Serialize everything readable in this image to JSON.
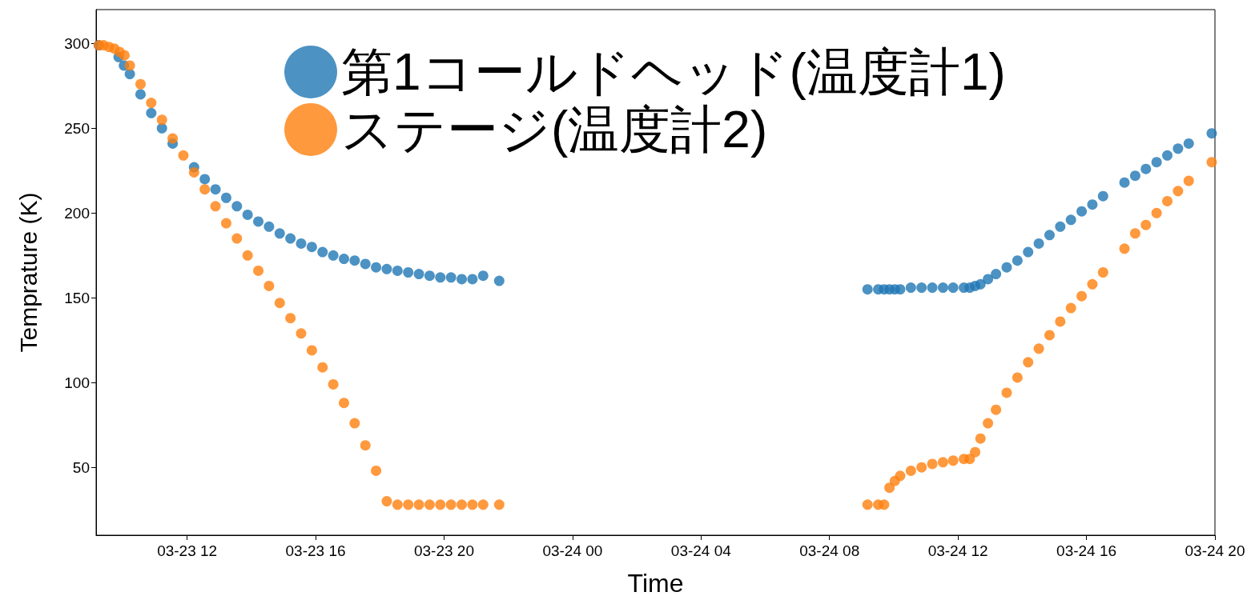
{
  "chart_data": {
    "type": "scatter",
    "xlabel": "Time",
    "ylabel": "Temprature (K)",
    "marker": "circle",
    "grid": false,
    "legend": "top",
    "xlim": [
      "--03-23T09:10",
      "--03-24T20:00"
    ],
    "xticks": [
      {
        "value": "--03-23T12:00",
        "label": "03-23 12"
      },
      {
        "value": "--03-23T16:00",
        "label": "03-23 16"
      },
      {
        "value": "--03-23T20:00",
        "label": "03-23 20"
      },
      {
        "value": "--03-24T00:00",
        "label": "03-24 00"
      },
      {
        "value": "--03-24T04:00",
        "label": "03-24 04"
      },
      {
        "value": "--03-24T08:00",
        "label": "03-24 08"
      },
      {
        "value": "--03-24T12:00",
        "label": "03-24 12"
      },
      {
        "value": "--03-24T16:00",
        "label": "03-24 16"
      },
      {
        "value": "--03-24T20:00",
        "label": "03-24 20"
      }
    ],
    "ylim": [
      10,
      320
    ],
    "yticks": [
      50,
      100,
      150,
      200,
      250,
      300
    ],
    "series": [
      {
        "name": "第1コールドヘッド(温度計1)",
        "color": "#1f77b4",
        "x": [
          "--03-23T09:15",
          "--03-23T09:24",
          "--03-23T09:34",
          "--03-23T09:44",
          "--03-23T09:52",
          "--03-23T10:02",
          "--03-23T10:13",
          "--03-23T10:33",
          "--03-23T10:53",
          "--03-23T11:13",
          "--03-23T11:33",
          "--03-23T12:13",
          "--03-23T12:33",
          "--03-23T12:53",
          "--03-23T13:13",
          "--03-23T13:33",
          "--03-23T13:53",
          "--03-23T14:13",
          "--03-23T14:33",
          "--03-23T14:53",
          "--03-23T15:13",
          "--03-23T15:33",
          "--03-23T15:53",
          "--03-23T16:13",
          "--03-23T16:33",
          "--03-23T16:53",
          "--03-23T17:13",
          "--03-23T17:33",
          "--03-23T17:53",
          "--03-23T18:13",
          "--03-23T18:33",
          "--03-23T18:53",
          "--03-23T19:13",
          "--03-23T19:33",
          "--03-23T19:53",
          "--03-23T20:13",
          "--03-23T20:33",
          "--03-23T20:53",
          "--03-23T21:13",
          "--03-23T21:43",
          "--03-24T09:11",
          "--03-24T09:31",
          "--03-24T09:42",
          "--03-24T09:52",
          "--03-24T10:02",
          "--03-24T10:12",
          "--03-24T10:32",
          "--03-24T10:52",
          "--03-24T11:12",
          "--03-24T11:32",
          "--03-24T11:51",
          "--03-24T12:11",
          "--03-24T12:22",
          "--03-24T12:32",
          "--03-24T12:42",
          "--03-24T12:56",
          "--03-24T13:11",
          "--03-24T13:31",
          "--03-24T13:51",
          "--03-24T14:11",
          "--03-24T14:31",
          "--03-24T14:51",
          "--03-24T15:11",
          "--03-24T15:31",
          "--03-24T15:51",
          "--03-24T16:11",
          "--03-24T16:31",
          "--03-24T17:11",
          "--03-24T17:31",
          "--03-24T17:51",
          "--03-24T18:11",
          "--03-24T18:31",
          "--03-24T18:51",
          "--03-24T19:11",
          "--03-24T19:54"
        ],
        "values": [
          299,
          null,
          null,
          null,
          292,
          287,
          282,
          270,
          259,
          250,
          241,
          227,
          220,
          214,
          209,
          204,
          199,
          195,
          192,
          188,
          185,
          182,
          180,
          177,
          175,
          173,
          172,
          170,
          168,
          167,
          166,
          165,
          164,
          163,
          162,
          162,
          161,
          161,
          163,
          160,
          155,
          155,
          155,
          155,
          155,
          155,
          156,
          156,
          156,
          156,
          156,
          156,
          156,
          157,
          158,
          161,
          164,
          168,
          172,
          177,
          182,
          187,
          192,
          196,
          201,
          205,
          210,
          218,
          222,
          226,
          230,
          234,
          238,
          241,
          247
        ]
      },
      {
        "name": "ステージ(温度計2)",
        "color": "#ff7f0e",
        "x": [
          "--03-23T09:15",
          "--03-23T09:24",
          "--03-23T09:34",
          "--03-23T09:44",
          "--03-23T09:54",
          "--03-23T10:03",
          "--03-23T10:13",
          "--03-23T10:33",
          "--03-23T10:53",
          "--03-23T11:13",
          "--03-23T11:33",
          "--03-23T11:53",
          "--03-23T12:13",
          "--03-23T12:33",
          "--03-23T12:53",
          "--03-23T13:13",
          "--03-23T13:33",
          "--03-23T13:53",
          "--03-23T14:13",
          "--03-23T14:33",
          "--03-23T14:53",
          "--03-23T15:13",
          "--03-23T15:33",
          "--03-23T15:53",
          "--03-23T16:13",
          "--03-23T16:33",
          "--03-23T16:53",
          "--03-23T17:13",
          "--03-23T17:33",
          "--03-23T17:53",
          "--03-23T18:13",
          "--03-23T18:33",
          "--03-23T18:53",
          "--03-23T19:13",
          "--03-23T19:33",
          "--03-23T19:53",
          "--03-23T20:13",
          "--03-23T20:33",
          "--03-23T20:53",
          "--03-23T21:13",
          "--03-23T21:43",
          "--03-24T09:11",
          "--03-24T09:31",
          "--03-24T09:42",
          "--03-24T09:52",
          "--03-24T10:02",
          "--03-24T10:12",
          "--03-24T10:32",
          "--03-24T10:52",
          "--03-24T11:12",
          "--03-24T11:32",
          "--03-24T11:51",
          "--03-24T12:11",
          "--03-24T12:22",
          "--03-24T12:32",
          "--03-24T12:42",
          "--03-24T12:56",
          "--03-24T13:11",
          "--03-24T13:31",
          "--03-24T13:51",
          "--03-24T14:11",
          "--03-24T14:31",
          "--03-24T14:51",
          "--03-24T15:11",
          "--03-24T15:31",
          "--03-24T15:51",
          "--03-24T16:11",
          "--03-24T16:31",
          "--03-24T17:11",
          "--03-24T17:31",
          "--03-24T17:51",
          "--03-24T18:11",
          "--03-24T18:31",
          "--03-24T18:51",
          "--03-24T19:11",
          "--03-24T19:54"
        ],
        "values": [
          299,
          299,
          298,
          297,
          295,
          293,
          287,
          276,
          265,
          255,
          244,
          234,
          224,
          214,
          204,
          194,
          185,
          175,
          166,
          157,
          147,
          138,
          129,
          119,
          109,
          99,
          88,
          76,
          63,
          48,
          30,
          28,
          28,
          28,
          28,
          28,
          28,
          28,
          28,
          28,
          28,
          28,
          28,
          28,
          38,
          42,
          45,
          48,
          50,
          52,
          53,
          54,
          55,
          55,
          59,
          67,
          76,
          84,
          94,
          103,
          112,
          120,
          128,
          136,
          144,
          151,
          158,
          165,
          179,
          188,
          193,
          200,
          207,
          213,
          219,
          230
        ]
      }
    ]
  }
}
